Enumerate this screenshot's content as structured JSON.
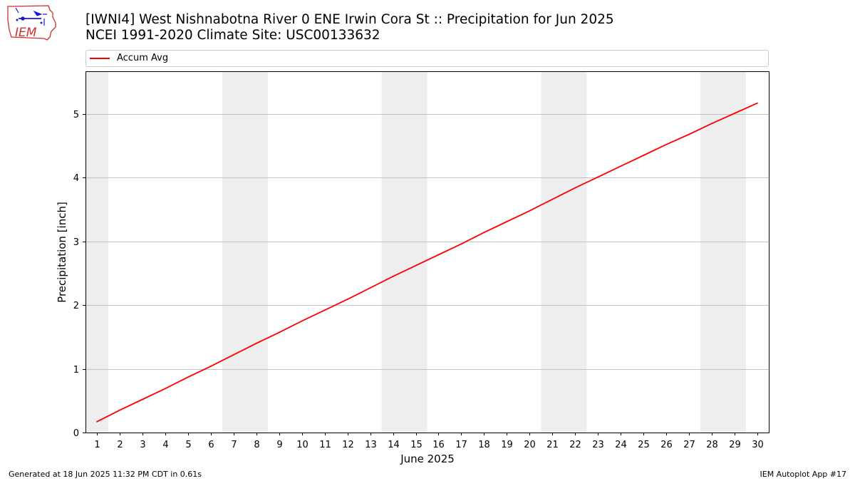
{
  "header": {
    "title_line1": "[IWNI4] West Nishnabotna River 0 ENE Irwin Cora St :: Precipitation for Jun 2025",
    "title_line2": "NCEI 1991-2020 Climate Site: USC00133632",
    "logo_text": "IEM"
  },
  "footer": {
    "generated": "Generated at 18 Jun 2025 11:32 PM CDT in 0.61s",
    "app": "IEM Autoplot App #17"
  },
  "colors": {
    "series": "#ff0000",
    "weekend_band": "#eeeeee",
    "grid": "#b0b0b0",
    "logo_red": "#d22d2d",
    "logo_blue": "#1a1ad2"
  },
  "chart_data": {
    "type": "line",
    "xlabel": "June 2025",
    "ylabel": "Precipitation [inch]",
    "xlim": [
      0.5,
      30.5
    ],
    "ylim": [
      0,
      5.67
    ],
    "x_ticks": [
      1,
      2,
      3,
      4,
      5,
      6,
      7,
      8,
      9,
      10,
      11,
      12,
      13,
      14,
      15,
      16,
      17,
      18,
      19,
      20,
      21,
      22,
      23,
      24,
      25,
      26,
      27,
      28,
      29,
      30
    ],
    "y_ticks": [
      0,
      1,
      2,
      3,
      4,
      5
    ],
    "grid": "horizontal",
    "legend_position": "top",
    "weekend_days": [
      1,
      7,
      8,
      14,
      15,
      21,
      22,
      28,
      29
    ],
    "series": [
      {
        "name": "Accum Avg",
        "x": [
          1,
          2,
          3,
          4,
          5,
          6,
          7,
          8,
          9,
          10,
          11,
          12,
          13,
          14,
          15,
          16,
          17,
          18,
          19,
          20,
          21,
          22,
          23,
          24,
          25,
          26,
          27,
          28,
          29,
          30
        ],
        "values": [
          0.17,
          0.35,
          0.52,
          0.69,
          0.87,
          1.04,
          1.22,
          1.4,
          1.57,
          1.75,
          1.92,
          2.09,
          2.27,
          2.45,
          2.62,
          2.79,
          2.96,
          3.14,
          3.31,
          3.48,
          3.66,
          3.84,
          4.01,
          4.18,
          4.35,
          4.52,
          4.68,
          4.85,
          5.01,
          5.17
        ]
      }
    ]
  }
}
